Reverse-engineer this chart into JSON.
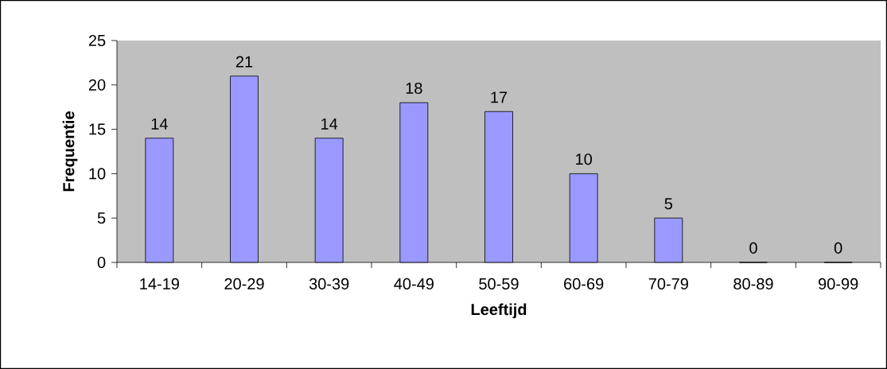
{
  "chart_data": {
    "type": "bar",
    "xlabel": "Leeftijd",
    "ylabel": "Frequentie",
    "categories": [
      "14-19",
      "20-29",
      "30-39",
      "40-49",
      "50-59",
      "60-69",
      "70-79",
      "80-89",
      "90-99"
    ],
    "values": [
      14,
      21,
      14,
      18,
      17,
      10,
      5,
      0,
      0
    ],
    "color": "#9999ff",
    "ylim": [
      0,
      25
    ],
    "yticks": [
      0,
      5,
      10,
      15,
      20,
      25
    ],
    "data_labels": true
  }
}
